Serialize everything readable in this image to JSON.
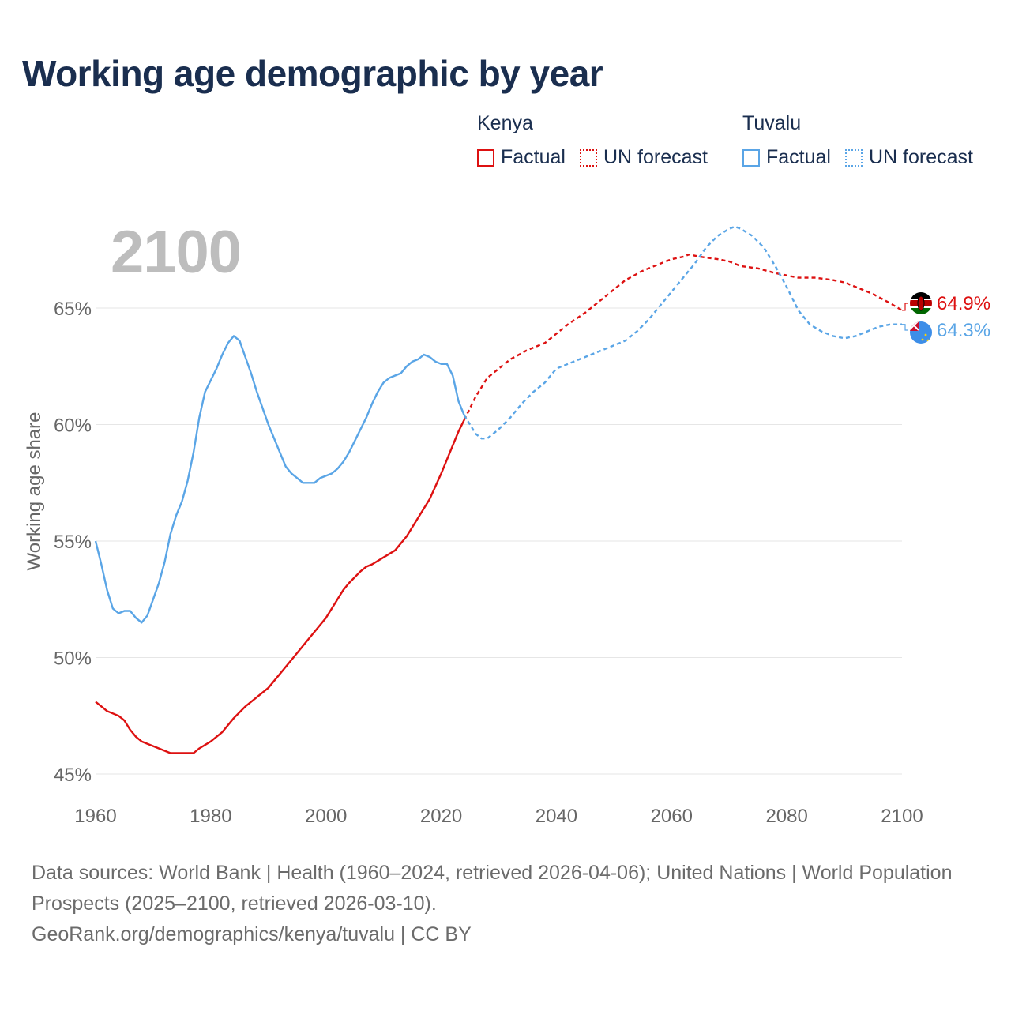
{
  "title": "Working age demographic by year",
  "year_display": "2100",
  "legend": {
    "groups": [
      {
        "name": "Kenya",
        "factual_label": "Factual",
        "forecast_label": "UN forecast",
        "color": "#dd1111"
      },
      {
        "name": "Tuvalu",
        "factual_label": "Factual",
        "forecast_label": "UN forecast",
        "color": "#5aa5e6"
      }
    ]
  },
  "footer": {
    "line1": "Data sources: World Bank | Health (1960–2024, retrieved 2026-04-06); United Nations | World Population Prospects (2025–2100, retrieved 2026-03-10).",
    "line2": "GeoRank.org/demographics/kenya/tuvalu | CC BY"
  },
  "chart_data": {
    "type": "line",
    "title": "Working age demographic by year",
    "xlabel": "",
    "ylabel": "Working age share",
    "xlim": [
      1960,
      2100
    ],
    "ylim": [
      45,
      67
    ],
    "x_ticks": [
      1960,
      1980,
      2000,
      2020,
      2040,
      2060,
      2080,
      2100
    ],
    "x_tick_labels": [
      "1960",
      "1980",
      "2000",
      "2020",
      "2040",
      "2060",
      "2080",
      "2100"
    ],
    "y_ticks": [
      45,
      50,
      55,
      60,
      65
    ],
    "y_tick_labels": [
      "45%",
      "50%",
      "55%",
      "60%",
      "65%"
    ],
    "grid": true,
    "series": [
      {
        "name": "Kenya",
        "color": "#dd1111",
        "end_label": "64.9%",
        "factual": {
          "x": [
            1960,
            1962,
            1964,
            1965,
            1966,
            1967,
            1968,
            1970,
            1972,
            1973,
            1974,
            1975,
            1976,
            1977,
            1978,
            1980,
            1982,
            1984,
            1986,
            1988,
            1990,
            1992,
            1994,
            1996,
            1998,
            2000,
            2002,
            2003,
            2004,
            2006,
            2007,
            2008,
            2010,
            2012,
            2014,
            2016,
            2018,
            2020,
            2021,
            2022,
            2023,
            2024
          ],
          "y": [
            48.1,
            47.7,
            47.5,
            47.3,
            46.9,
            46.6,
            46.4,
            46.2,
            46.0,
            45.9,
            45.9,
            45.9,
            45.9,
            45.9,
            46.1,
            46.4,
            46.8,
            47.4,
            47.9,
            48.3,
            48.7,
            49.3,
            49.9,
            50.5,
            51.1,
            51.7,
            52.5,
            52.9,
            53.2,
            53.7,
            53.9,
            54.0,
            54.3,
            54.6,
            55.2,
            56.0,
            56.8,
            57.9,
            58.5,
            59.1,
            59.7,
            60.2
          ]
        },
        "forecast": {
          "x": [
            2024,
            2026,
            2028,
            2030,
            2032,
            2035,
            2038,
            2040,
            2042,
            2045,
            2048,
            2050,
            2052,
            2055,
            2058,
            2060,
            2062,
            2063,
            2065,
            2068,
            2070,
            2072,
            2075,
            2078,
            2080,
            2082,
            2085,
            2088,
            2090,
            2092,
            2095,
            2098,
            2100
          ],
          "y": [
            60.2,
            61.2,
            62.0,
            62.4,
            62.8,
            63.2,
            63.5,
            63.9,
            64.3,
            64.8,
            65.4,
            65.8,
            66.2,
            66.6,
            66.9,
            67.1,
            67.2,
            67.3,
            67.2,
            67.1,
            67.0,
            66.8,
            66.7,
            66.5,
            66.4,
            66.3,
            66.3,
            66.2,
            66.1,
            65.9,
            65.6,
            65.2,
            64.9
          ]
        }
      },
      {
        "name": "Tuvalu",
        "color": "#5aa5e6",
        "end_label": "64.3%",
        "factual": {
          "x": [
            1960,
            1961,
            1962,
            1963,
            1964,
            1965,
            1966,
            1967,
            1968,
            1969,
            1970,
            1971,
            1972,
            1973,
            1974,
            1975,
            1976,
            1977,
            1978,
            1979,
            1980,
            1981,
            1982,
            1983,
            1984,
            1985,
            1986,
            1987,
            1988,
            1989,
            1990,
            1991,
            1992,
            1993,
            1994,
            1995,
            1996,
            1997,
            1998,
            1999,
            2000,
            2001,
            2002,
            2003,
            2004,
            2005,
            2006,
            2007,
            2008,
            2009,
            2010,
            2011,
            2012,
            2013,
            2014,
            2015,
            2016,
            2017,
            2018,
            2019,
            2020,
            2021,
            2022,
            2023,
            2024
          ],
          "y": [
            55.0,
            54.0,
            52.9,
            52.1,
            51.9,
            52.0,
            52.0,
            51.7,
            51.5,
            51.8,
            52.5,
            53.2,
            54.1,
            55.3,
            56.1,
            56.7,
            57.6,
            58.8,
            60.3,
            61.4,
            61.9,
            62.4,
            63.0,
            63.5,
            63.8,
            63.6,
            62.9,
            62.2,
            61.4,
            60.7,
            60.0,
            59.4,
            58.8,
            58.2,
            57.9,
            57.7,
            57.5,
            57.5,
            57.5,
            57.7,
            57.8,
            57.9,
            58.1,
            58.4,
            58.8,
            59.3,
            59.8,
            60.3,
            60.9,
            61.4,
            61.8,
            62.0,
            62.1,
            62.2,
            62.5,
            62.7,
            62.8,
            63.0,
            62.9,
            62.7,
            62.6,
            62.6,
            62.1,
            61.0,
            60.4
          ]
        },
        "forecast": {
          "x": [
            2024,
            2025,
            2026,
            2027,
            2028,
            2030,
            2032,
            2034,
            2036,
            2038,
            2040,
            2042,
            2044,
            2046,
            2048,
            2050,
            2052,
            2054,
            2056,
            2058,
            2060,
            2062,
            2064,
            2066,
            2068,
            2070,
            2071,
            2072,
            2074,
            2076,
            2078,
            2080,
            2082,
            2084,
            2086,
            2088,
            2090,
            2092,
            2094,
            2096,
            2098,
            2100
          ],
          "y": [
            60.4,
            60.0,
            59.6,
            59.4,
            59.4,
            59.8,
            60.3,
            60.9,
            61.4,
            61.8,
            62.4,
            62.6,
            62.8,
            63.0,
            63.2,
            63.4,
            63.6,
            64.0,
            64.5,
            65.1,
            65.7,
            66.3,
            66.9,
            67.6,
            68.1,
            68.4,
            68.5,
            68.4,
            68.1,
            67.6,
            66.8,
            65.9,
            64.9,
            64.3,
            64.0,
            63.8,
            63.7,
            63.8,
            64.0,
            64.2,
            64.3,
            64.3
          ]
        }
      }
    ]
  }
}
